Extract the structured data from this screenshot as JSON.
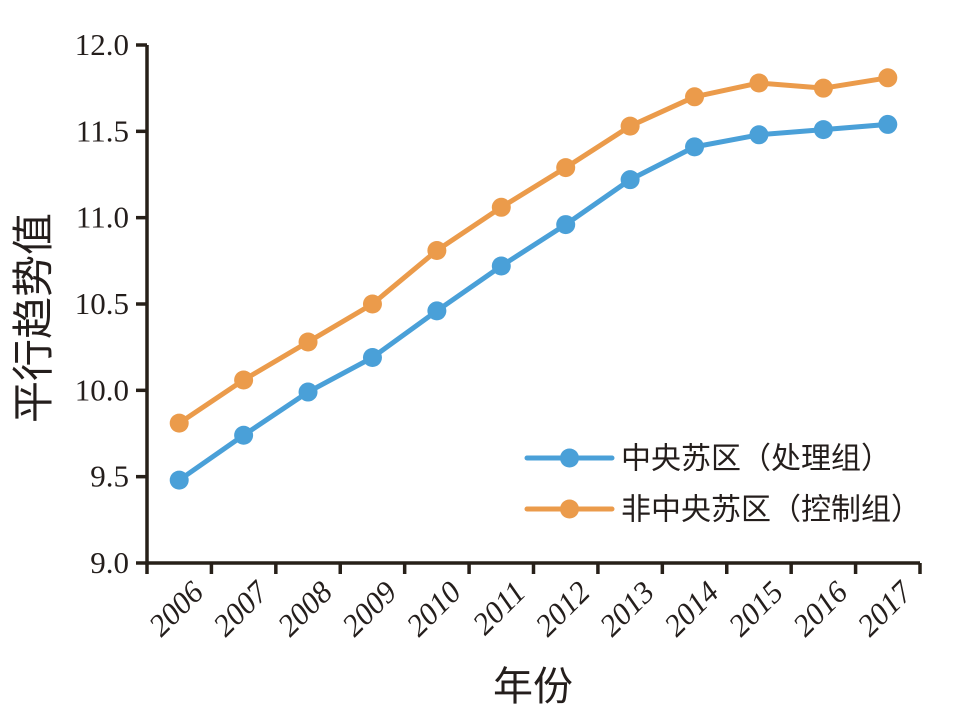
{
  "figure": {
    "background": "#ffffff",
    "axis_color": "#272019",
    "text_color": "#241e1c"
  },
  "chart_data": {
    "type": "line",
    "title": "",
    "xlabel": "年份",
    "ylabel": "平行趋势值",
    "x": [
      2006,
      2007,
      2008,
      2009,
      2010,
      2011,
      2012,
      2013,
      2014,
      2015,
      2016,
      2017
    ],
    "series": [
      {
        "name": "中央苏区（处理组）",
        "color": "#4aa0d8",
        "values": [
          9.48,
          9.74,
          9.99,
          10.19,
          10.46,
          10.72,
          10.96,
          11.22,
          11.41,
          11.48,
          11.51,
          11.54
        ]
      },
      {
        "name": "非中央苏区（控制组）",
        "color": "#eb9b4b",
        "values": [
          9.81,
          10.06,
          10.28,
          10.5,
          10.81,
          11.06,
          11.29,
          11.53,
          11.7,
          11.78,
          11.75,
          11.81
        ]
      }
    ],
    "ylim": [
      9.0,
      12.0
    ],
    "ytick_step": 0.5,
    "ytick_labels": [
      "9.0",
      "9.5",
      "10.0",
      "10.5",
      "11.0",
      "11.5",
      "12.0"
    ],
    "grid": false,
    "legend_position": "inside-lower-right",
    "x_tick_label_rotation": -45,
    "marker": "circle"
  }
}
